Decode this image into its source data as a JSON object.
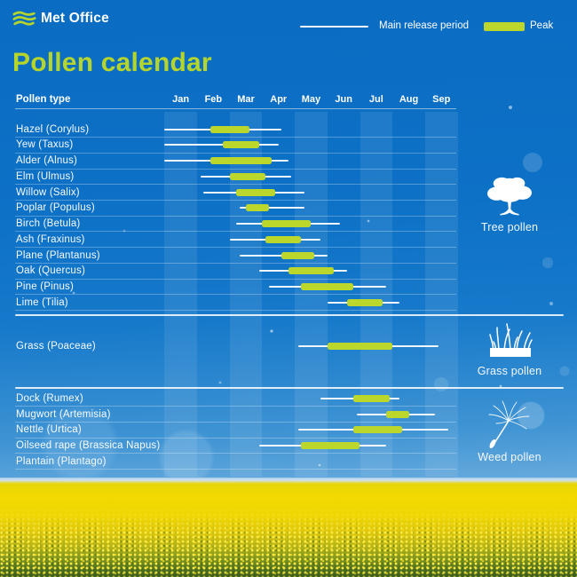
{
  "brand": {
    "logo_text": "Met Office"
  },
  "title": "Pollen calendar",
  "legend": {
    "release_label": "Main release period",
    "peak_label": "Peak"
  },
  "table": {
    "header": "Pollen type"
  },
  "chart_data": {
    "type": "bar",
    "subtype": "horizontal-range-gantt",
    "unit": "months, 0 = start of Jan, 9 = end of Sep",
    "months": [
      "Jan",
      "Feb",
      "Mar",
      "Apr",
      "May",
      "Jun",
      "Jul",
      "Aug",
      "Sep"
    ],
    "shaded_month_columns": [
      0,
      2,
      4,
      6,
      8
    ],
    "sections": [
      {
        "id": "tree",
        "label": "Tree pollen",
        "rows": [
          {
            "label": "Hazel (Corylus)",
            "release": [
              0.0,
              3.6
            ],
            "peak": [
              1.4,
              2.6
            ]
          },
          {
            "label": "Yew (Taxus)",
            "release": [
              0.0,
              3.5
            ],
            "peak": [
              1.8,
              2.9
            ]
          },
          {
            "label": "Alder (Alnus)",
            "release": [
              0.0,
              3.8
            ],
            "peak": [
              1.4,
              3.3
            ]
          },
          {
            "label": "Elm (Ulmus)",
            "release": [
              1.1,
              3.9
            ],
            "peak": [
              2.0,
              3.1
            ]
          },
          {
            "label": "Willow (Salix)",
            "release": [
              1.2,
              4.3
            ],
            "peak": [
              2.2,
              3.4
            ]
          },
          {
            "label": "Poplar (Populus)",
            "release": [
              2.3,
              4.3
            ],
            "peak": [
              2.5,
              3.2
            ]
          },
          {
            "label": "Birch (Betula)",
            "release": [
              2.2,
              5.4
            ],
            "peak": [
              3.0,
              4.5
            ]
          },
          {
            "label": "Ash (Fraxinus)",
            "release": [
              2.0,
              4.8
            ],
            "peak": [
              3.1,
              4.2
            ]
          },
          {
            "label": "Plane (Plantanus)",
            "release": [
              2.3,
              5.0
            ],
            "peak": [
              3.6,
              4.6
            ]
          },
          {
            "label": "Oak (Quercus)",
            "release": [
              2.9,
              5.6
            ],
            "peak": [
              3.8,
              5.2
            ]
          },
          {
            "label": "Pine (Pinus)",
            "release": [
              3.2,
              6.8
            ],
            "peak": [
              4.2,
              5.8
            ]
          },
          {
            "label": "Lime (Tilia)",
            "release": [
              5.0,
              7.2
            ],
            "peak": [
              5.6,
              6.7
            ]
          }
        ]
      },
      {
        "id": "grass",
        "label": "Grass pollen",
        "rows": [
          {
            "label": "Grass (Poaceae)",
            "release": [
              4.1,
              8.4
            ],
            "peak": [
              5.0,
              7.0
            ]
          }
        ]
      },
      {
        "id": "weed",
        "label": "Weed pollen",
        "rows": [
          {
            "label": "Dock (Rumex)",
            "release": [
              4.8,
              7.2
            ],
            "peak": [
              5.8,
              6.9
            ]
          },
          {
            "label": "Mugwort (Artemisia)",
            "release": [
              5.9,
              8.3
            ],
            "peak": [
              6.8,
              7.5
            ]
          },
          {
            "label": "Nettle (Urtica)",
            "release": [
              4.1,
              8.7
            ],
            "peak": [
              5.8,
              7.3
            ]
          },
          {
            "label": "Oilseed rape (Brassica Napus)",
            "release": [
              2.9,
              6.8
            ],
            "peak": [
              4.2,
              6.0
            ]
          },
          {
            "label": "Plantain (Plantago)",
            "release": null,
            "peak": null
          }
        ]
      }
    ]
  },
  "colors": {
    "accent_lime": "#bcd72b",
    "title_green": "#b5d52c",
    "sky_blue": "#0d71c6",
    "release_line": "#ffffff",
    "field_yellow": "#f2da00",
    "field_green": "#4e7020"
  }
}
